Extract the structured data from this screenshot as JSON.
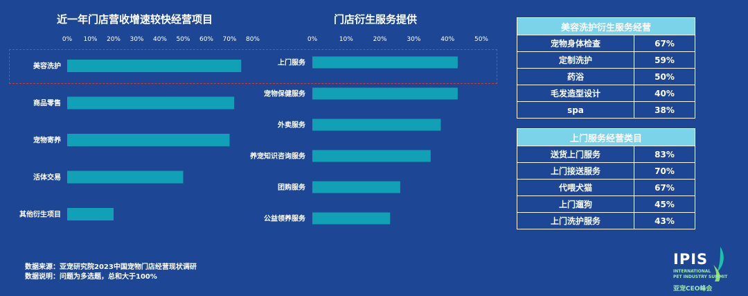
{
  "chart_data": [
    {
      "type": "bar",
      "orientation": "horizontal",
      "title": "近一年门店营收增速较快经营项目",
      "categories": [
        "美容洗护",
        "商品零售",
        "宠物寄养",
        "活体交易",
        "其他衍生项目"
      ],
      "values": [
        75,
        72,
        70,
        50,
        20
      ],
      "xlim": [
        0,
        80
      ],
      "ticks": [
        "0%",
        "10%",
        "20%",
        "30%",
        "40%",
        "50%",
        "60%",
        "70%",
        "80%"
      ],
      "highlight": "美容洗护"
    },
    {
      "type": "bar",
      "orientation": "horizontal",
      "title": "门店衍生服务提供",
      "categories": [
        "上门服务",
        "宠物保健服务",
        "外卖服务",
        "养宠知识咨询服务",
        "团购服务",
        "公益领养服务"
      ],
      "values": [
        43,
        43,
        38,
        35,
        26,
        23
      ],
      "xlim": [
        0,
        50
      ],
      "ticks": [
        "0%",
        "10%",
        "20%",
        "30%",
        "40%",
        "50%"
      ],
      "highlight": "上门服务"
    }
  ],
  "tables": [
    {
      "title": "美容洗护衍生服务经营",
      "rows": [
        {
          "label": "宠物身体检查",
          "value": "67%"
        },
        {
          "label": "定制洗护",
          "value": "59%"
        },
        {
          "label": "药浴",
          "value": "50%"
        },
        {
          "label": "毛发造型设计",
          "value": "40%"
        },
        {
          "label": "spa",
          "value": "38%"
        }
      ]
    },
    {
      "title": "上门服务经营类目",
      "rows": [
        {
          "label": "送货上门服务",
          "value": "83%"
        },
        {
          "label": "上门接送服务",
          "value": "70%"
        },
        {
          "label": "代喂犬猫",
          "value": "67%"
        },
        {
          "label": "上门遛狗",
          "value": "45%"
        },
        {
          "label": "上门洗护服务",
          "value": "43%"
        }
      ]
    }
  ],
  "footnotes": {
    "source": "数据来源：亚宠研究院2023中国宠物门店经营现状调研",
    "note": "数据说明：问题为多选题，总和大于100%"
  },
  "logo": {
    "text": "IPIS",
    "sub1": "INTERNATIONAL",
    "sub2": "PET INDUSTRY SUMMIT",
    "cn": "亚宠CEO峰会"
  },
  "colors": {
    "background": "#1d4794",
    "bar": "#12a0b6",
    "table_header": "#7ad3e8",
    "highlight": "#d23a3a"
  }
}
